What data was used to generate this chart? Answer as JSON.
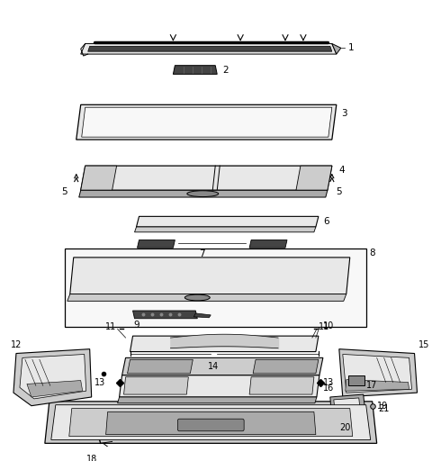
{
  "bg_color": "#ffffff",
  "line_color": "#000000",
  "gray_light": "#e8e8e8",
  "gray_mid": "#cccccc",
  "gray_dark": "#aaaaaa",
  "gray_darker": "#888888",
  "gray_black": "#444444"
}
